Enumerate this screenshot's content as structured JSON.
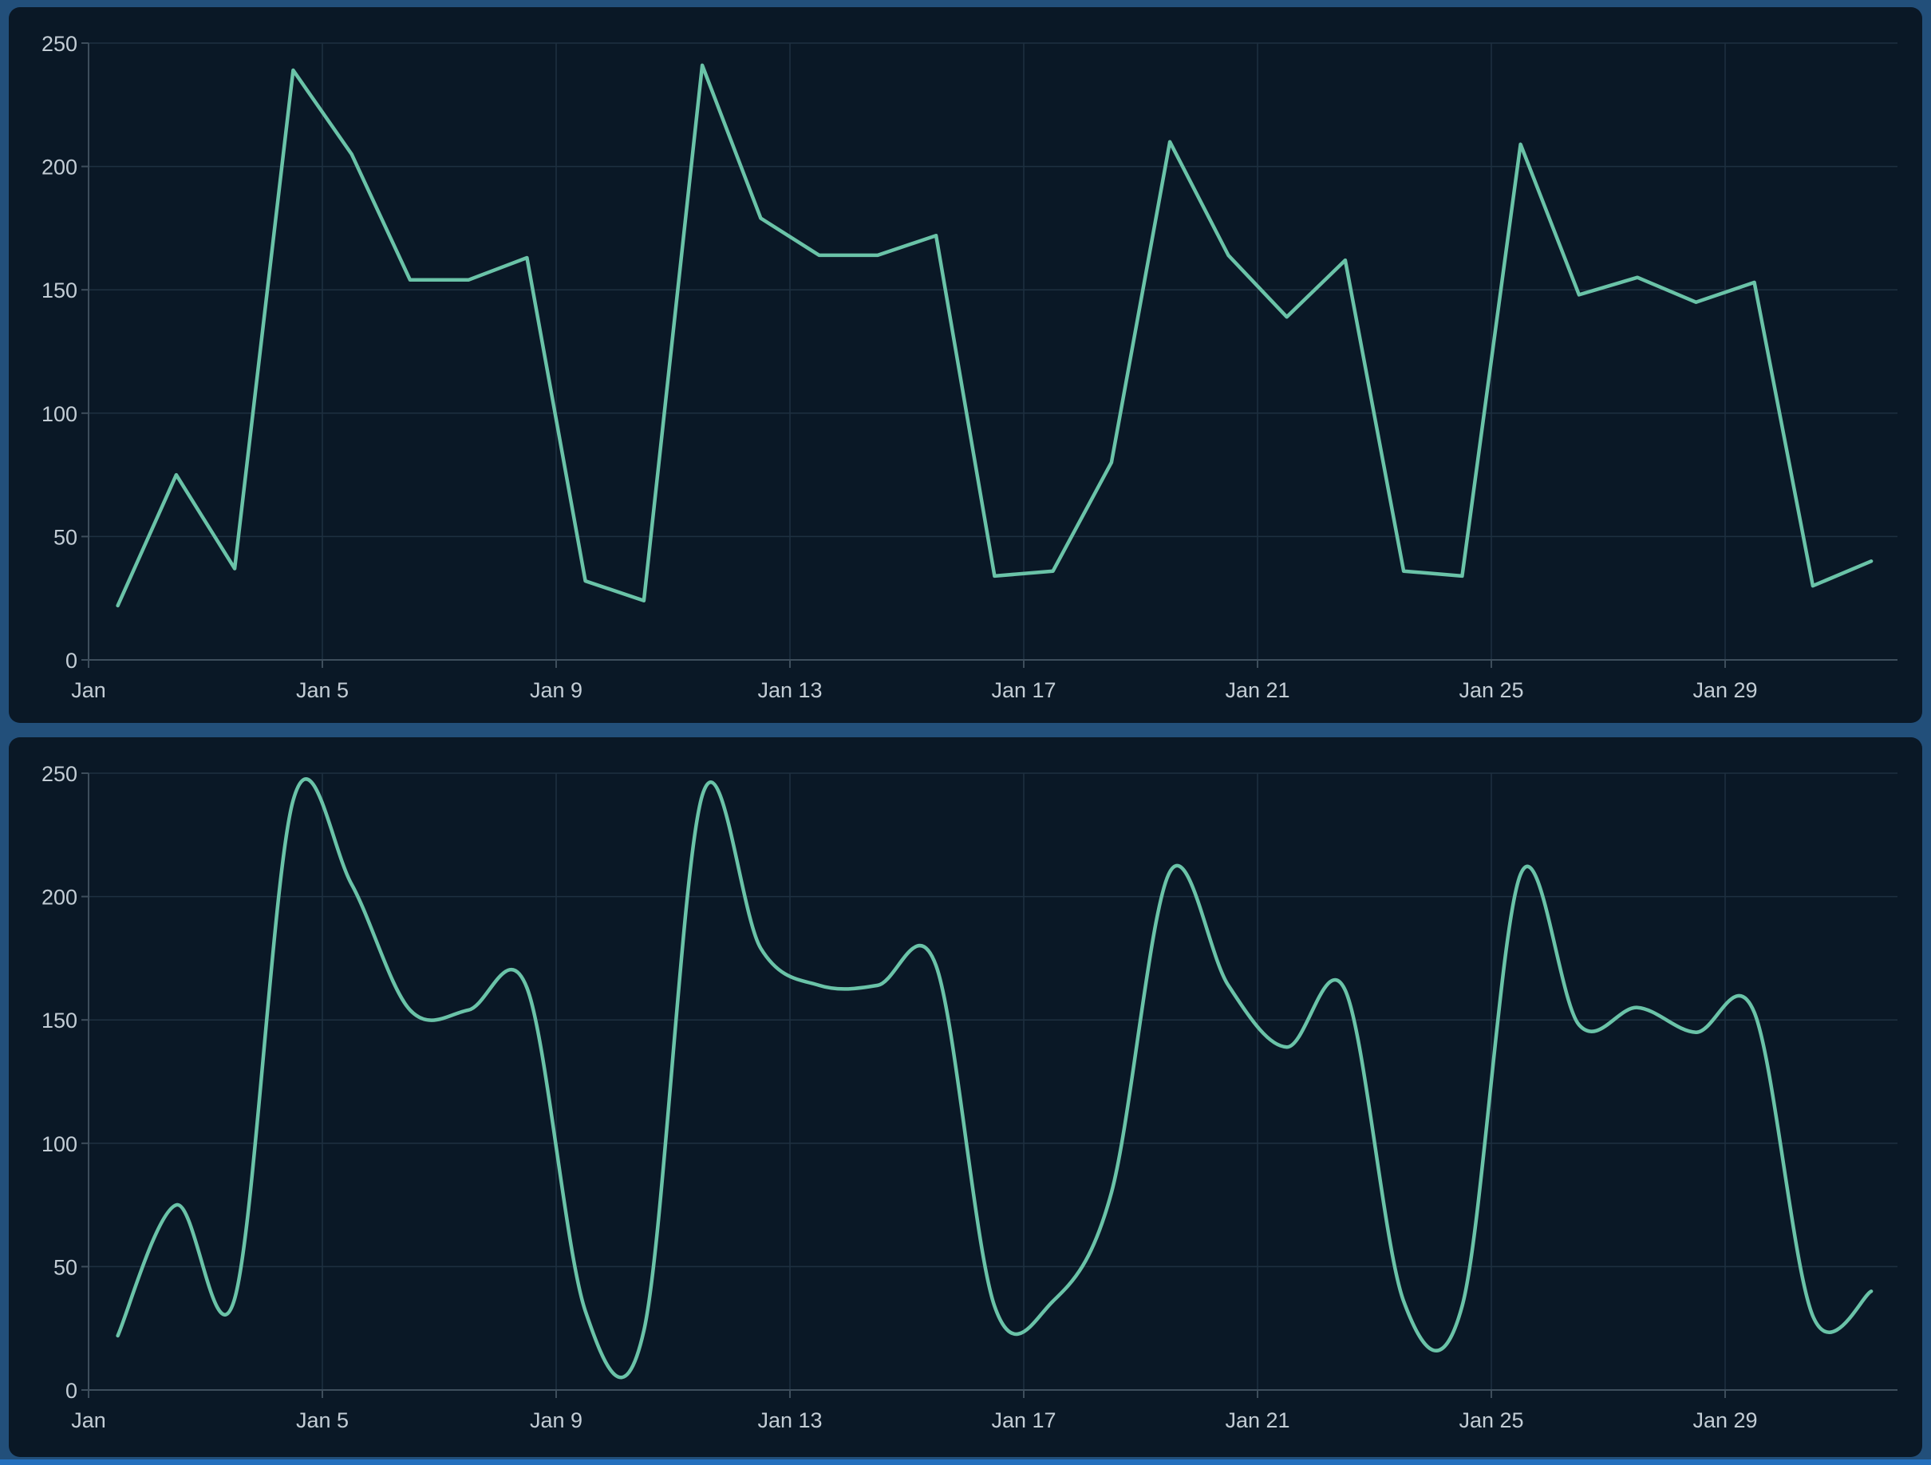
{
  "theme": {
    "page_background": "#224F7A",
    "bottom_edge_highlight": "#2470BE",
    "panel_background": "#0A1826",
    "grid_color": "#1E3040",
    "axis_color": "#3E4E5C",
    "tick_label_color": "#C3CDD5",
    "line_color": "#6AC3A8"
  },
  "chart_data": [
    {
      "type": "line",
      "interpolation": "linear",
      "title": "",
      "xlabel": "",
      "ylabel": "",
      "x": [
        "Jan 1",
        "Jan 2",
        "Jan 3",
        "Jan 4",
        "Jan 5",
        "Jan 6",
        "Jan 7",
        "Jan 8",
        "Jan 9",
        "Jan 10",
        "Jan 11",
        "Jan 12",
        "Jan 13",
        "Jan 14",
        "Jan 15",
        "Jan 16",
        "Jan 17",
        "Jan 18",
        "Jan 19",
        "Jan 20",
        "Jan 21",
        "Jan 22",
        "Jan 23",
        "Jan 24",
        "Jan 25",
        "Jan 26",
        "Jan 27",
        "Jan 28",
        "Jan 29",
        "Jan 30",
        "Jan 31"
      ],
      "values": [
        22,
        75,
        37,
        239,
        205,
        154,
        154,
        163,
        32,
        24,
        241,
        179,
        164,
        164,
        172,
        34,
        36,
        80,
        210,
        164,
        139,
        162,
        36,
        34,
        209,
        148,
        155,
        145,
        153,
        30,
        40
      ],
      "x_tick_labels": [
        "Jan",
        "Jan 5",
        "Jan 9",
        "Jan 13",
        "Jan 17",
        "Jan 21",
        "Jan 25",
        "Jan 29"
      ],
      "x_tick_days": [
        1,
        5,
        9,
        13,
        17,
        21,
        25,
        29
      ],
      "y_ticks": [
        0,
        50,
        100,
        150,
        200,
        250
      ],
      "ylim": [
        0,
        250
      ],
      "grid": true,
      "legend": "none"
    },
    {
      "type": "line",
      "interpolation": "smooth",
      "title": "",
      "xlabel": "",
      "ylabel": "",
      "x": [
        "Jan 1",
        "Jan 2",
        "Jan 3",
        "Jan 4",
        "Jan 5",
        "Jan 6",
        "Jan 7",
        "Jan 8",
        "Jan 9",
        "Jan 10",
        "Jan 11",
        "Jan 12",
        "Jan 13",
        "Jan 14",
        "Jan 15",
        "Jan 16",
        "Jan 17",
        "Jan 18",
        "Jan 19",
        "Jan 20",
        "Jan 21",
        "Jan 22",
        "Jan 23",
        "Jan 24",
        "Jan 25",
        "Jan 26",
        "Jan 27",
        "Jan 28",
        "Jan 29",
        "Jan 30",
        "Jan 31"
      ],
      "values": [
        22,
        75,
        37,
        239,
        205,
        154,
        154,
        163,
        32,
        24,
        241,
        179,
        164,
        164,
        172,
        34,
        36,
        80,
        210,
        164,
        139,
        162,
        36,
        34,
        209,
        148,
        155,
        145,
        153,
        30,
        40
      ],
      "x_tick_labels": [
        "Jan",
        "Jan 5",
        "Jan 9",
        "Jan 13",
        "Jan 17",
        "Jan 21",
        "Jan 25",
        "Jan 29"
      ],
      "x_tick_days": [
        1,
        5,
        9,
        13,
        17,
        21,
        25,
        29
      ],
      "y_ticks": [
        0,
        50,
        100,
        150,
        200,
        250
      ],
      "ylim": [
        0,
        250
      ],
      "grid": true,
      "legend": "none"
    }
  ]
}
